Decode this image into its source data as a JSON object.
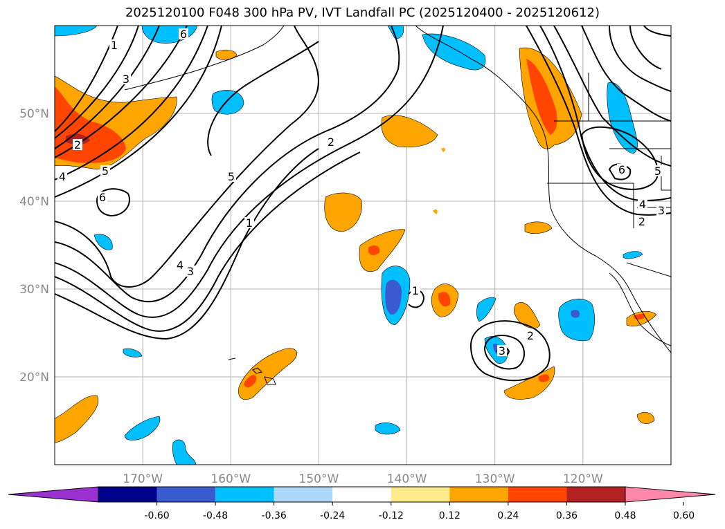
{
  "title": "2025120100 F048 300 hPa PV, IVT Landfall PC (2025120400 - 2025120612)",
  "map": {
    "lon_range": [
      -180,
      -110
    ],
    "lat_range": [
      10,
      60
    ],
    "lat_ticks": [
      {
        "value": 50,
        "label": "50°N"
      },
      {
        "value": 40,
        "label": "40°N"
      },
      {
        "value": 30,
        "label": "30°N"
      },
      {
        "value": 20,
        "label": "20°N"
      }
    ],
    "lon_ticks": [
      {
        "value": -170,
        "label": "170°W"
      },
      {
        "value": -160,
        "label": "160°W"
      },
      {
        "value": -150,
        "label": "150°W"
      },
      {
        "value": -140,
        "label": "140°W"
      },
      {
        "value": -130,
        "label": "130°W"
      },
      {
        "value": -120,
        "label": "120°W"
      }
    ],
    "gridlines": true
  },
  "contour_labels": [
    "1",
    "3",
    "6",
    "2",
    "5",
    "4",
    "6",
    "5",
    "4",
    "3",
    "1",
    "2",
    "5",
    "4",
    "3",
    "6",
    "2",
    "1",
    "2",
    "3"
  ],
  "colorbar": {
    "colors": [
      "#9b30d0",
      "#00008b",
      "#3a5bd0",
      "#00bfff",
      "#add8f8",
      "#ffffff",
      "#ffea8c",
      "#ffa500",
      "#ff4500",
      "#b22222",
      "#ff88aa"
    ],
    "tick_labels": [
      "-0.60",
      "-0.48",
      "-0.36",
      "-0.24",
      "-0.12",
      "0.12",
      "0.24",
      "0.36",
      "0.48",
      "0.60"
    ],
    "extend": "both"
  }
}
